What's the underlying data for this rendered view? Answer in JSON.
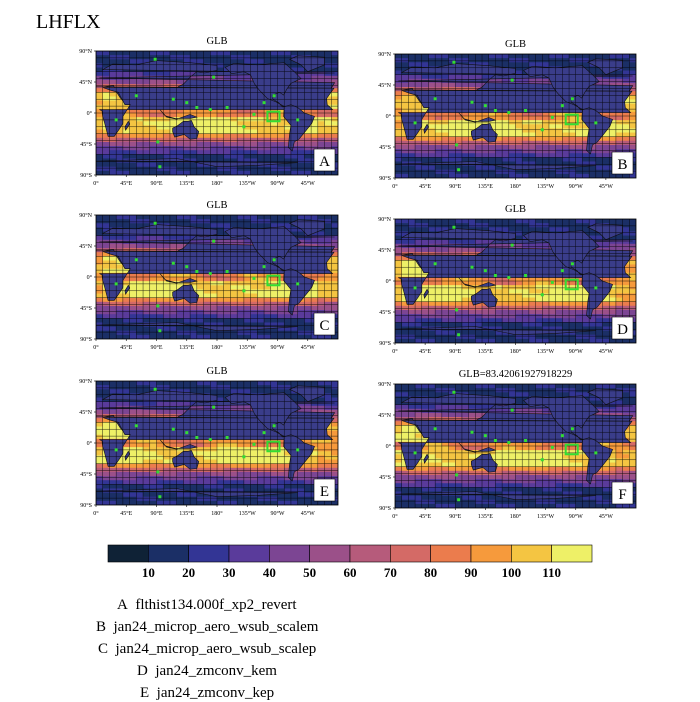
{
  "figure": {
    "variable": "LHFLX",
    "colorbar": {
      "ticks": [
        "10",
        "20",
        "30",
        "40",
        "50",
        "60",
        "70",
        "80",
        "90",
        "100",
        "110"
      ],
      "colors": [
        "#0f2236",
        "#1b2f66",
        "#333595",
        "#5a3b9b",
        "#7c4593",
        "#9b5089",
        "#b65b7b",
        "#d46a66",
        "#eb7c4d",
        "#f69a3c",
        "#f4c542",
        "#eef067"
      ]
    },
    "axes": {
      "lat_ticks": [
        "90°N",
        "45°N",
        "0°",
        "45°S",
        "90°S"
      ],
      "lon_ticks": [
        "0°",
        "45°E",
        "90°E",
        "135°E",
        "180°",
        "135°W",
        "90°W",
        "45°W"
      ]
    },
    "panels": [
      {
        "label": "A",
        "title": "GLB"
      },
      {
        "label": "B",
        "title": "GLB"
      },
      {
        "label": "C",
        "title": "GLB"
      },
      {
        "label": "D",
        "title": "GLB"
      },
      {
        "label": "E",
        "title": "GLB"
      },
      {
        "label": "F",
        "title": "GLB=83.42061927918229"
      }
    ],
    "runs": [
      {
        "label": "A",
        "name": "flthist134.000f_xp2_revert"
      },
      {
        "label": "B",
        "name": "jan24_microp_aero_wsub_scalem"
      },
      {
        "label": "C",
        "name": "jan24_microp_aero_wsub_scalep"
      },
      {
        "label": "D",
        "name": "jan24_zmconv_kem"
      },
      {
        "label": "E",
        "name": "jan24_zmconv_kep"
      }
    ]
  },
  "chart_data": {
    "type": "heatmap",
    "title": "LHFLX",
    "panel_titles": [
      "GLB",
      "GLB",
      "GLB",
      "GLB",
      "GLB",
      "GLB=83.42061927918229"
    ],
    "panel_labels": [
      "A",
      "B",
      "C",
      "D",
      "E",
      "F"
    ],
    "colorbar_levels": [
      10,
      20,
      30,
      40,
      50,
      60,
      70,
      80,
      90,
      100,
      110
    ],
    "x_ticks": [
      "0°",
      "45°E",
      "90°E",
      "135°E",
      "180°",
      "135°W",
      "90°W",
      "45°W"
    ],
    "y_ticks": [
      "90°N",
      "45°N",
      "0°",
      "45°S",
      "90°S"
    ],
    "legend": [
      "A flthist134.000f_xp2_revert",
      "B jan24_microp_aero_wsub_scalem",
      "C jan24_microp_aero_wsub_scalep",
      "D jan24_zmconv_kem",
      "E jan24_zmconv_kep"
    ]
  }
}
